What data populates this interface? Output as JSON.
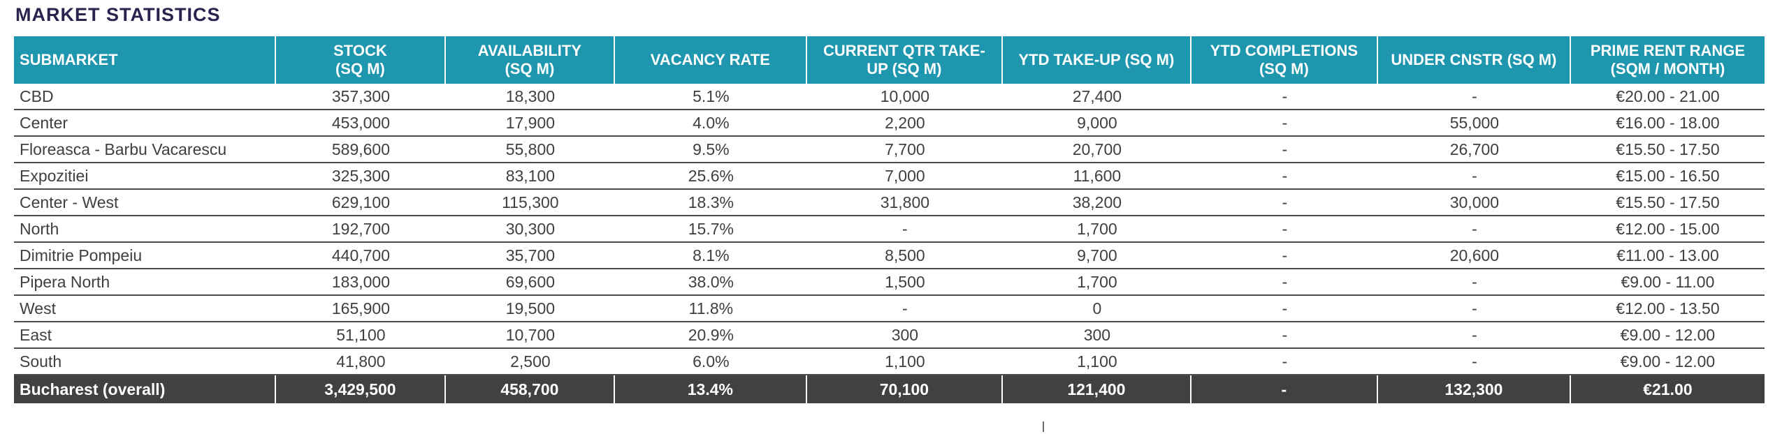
{
  "page_title": "MARKET STATISTICS",
  "colors": {
    "title_text": "#2a234e",
    "header_bg": "#1e96ad",
    "total_row_bg": "#414042",
    "row_border": "#4b4b4d",
    "body_text": "#3f3f41"
  },
  "table": {
    "columns": [
      "SUBMARKET",
      "STOCK\n(SQ M)",
      "AVAILABILITY\n(SQ M)",
      "VACANCY RATE",
      "CURRENT QTR TAKE-\nUP (SQ M)",
      "YTD TAKE-UP (SQ M)",
      "YTD COMPLETIONS\n(SQ M)",
      "UNDER CNSTR (SQ M)",
      "PRIME RENT RANGE\n(SQM / MONTH)"
    ],
    "rows": [
      [
        "CBD",
        "357,300",
        "18,300",
        "5.1%",
        "10,000",
        "27,400",
        "-",
        "-",
        "€20.00 - 21.00"
      ],
      [
        "Center",
        "453,000",
        "17,900",
        "4.0%",
        "2,200",
        "9,000",
        "-",
        "55,000",
        "€16.00 - 18.00"
      ],
      [
        "Floreasca - Barbu Vacarescu",
        "589,600",
        "55,800",
        "9.5%",
        "7,700",
        "20,700",
        "-",
        "26,700",
        "€15.50 - 17.50"
      ],
      [
        "Expozitiei",
        "325,300",
        "83,100",
        "25.6%",
        "7,000",
        "11,600",
        "-",
        "-",
        "€15.00 - 16.50"
      ],
      [
        "Center - West",
        "629,100",
        "115,300",
        "18.3%",
        "31,800",
        "38,200",
        "-",
        "30,000",
        "€15.50 - 17.50"
      ],
      [
        "North",
        "192,700",
        "30,300",
        "15.7%",
        "-",
        "1,700",
        "-",
        "-",
        "€12.00 - 15.00"
      ],
      [
        "Dimitrie Pompeiu",
        "440,700",
        "35,700",
        "8.1%",
        "8,500",
        "9,700",
        "-",
        "20,600",
        "€11.00 - 13.00"
      ],
      [
        "Pipera North",
        "183,000",
        "69,600",
        "38.0%",
        "1,500",
        "1,700",
        "-",
        "-",
        "€9.00 - 11.00"
      ],
      [
        "West",
        "165,900",
        "19,500",
        "11.8%",
        "-",
        "0",
        "-",
        "-",
        "€12.00 - 13.50"
      ],
      [
        "East",
        "51,100",
        "10,700",
        "20.9%",
        "300",
        "300",
        "-",
        "-",
        "€9.00 - 12.00"
      ],
      [
        "South",
        "41,800",
        "2,500",
        "6.0%",
        "1,100",
        "1,100",
        "-",
        "-",
        "€9.00 - 12.00"
      ]
    ],
    "total_row": [
      "Bucharest (overall)",
      "3,429,500",
      "458,700",
      "13.4%",
      "70,100",
      "121,400",
      "-",
      "132,300",
      "€21.00"
    ]
  }
}
